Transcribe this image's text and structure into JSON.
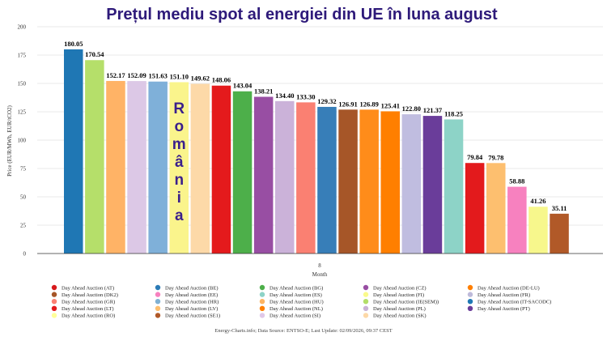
{
  "chart_data": {
    "type": "bar",
    "title": "Prețul mediu spot al energiei din UE în luna august",
    "xlabel": "Month",
    "ylabel": "Price (EUR/MWh, EUR/tCO2)",
    "ylim": [
      0,
      200
    ],
    "yticks": [
      0,
      25,
      50,
      75,
      100,
      125,
      150,
      175,
      200
    ],
    "categories": [
      "8"
    ],
    "grid": true,
    "legend_position": "bottom",
    "annotation": {
      "text": "România",
      "letters": [
        "R",
        "o",
        "m",
        "â",
        "n",
        "i",
        "a"
      ]
    },
    "series": [
      {
        "name": "Day Ahead Auction (AT)",
        "value": 180.05,
        "label": "180.05",
        "color": "#1f77b4"
      },
      {
        "name": "Day Ahead Auction (IE(SEM))",
        "value": 170.54,
        "label": "170.54",
        "color": "#b5df6a"
      },
      {
        "name": "Day Ahead Auction (LV)",
        "value": 152.17,
        "label": "152.17",
        "color": "#ffb366"
      },
      {
        "name": "Day Ahead Auction (SI)",
        "value": 152.09,
        "label": "152.09",
        "color": "#dcc8e6"
      },
      {
        "name": "Day Ahead Auction (HR)",
        "value": 151.63,
        "label": "151.63",
        "color": "#7fb0d9"
      },
      {
        "name": "Day Ahead Auction (RO)",
        "value": 151.1,
        "label": "151.10",
        "color": "#faf48c"
      },
      {
        "name": "Day Ahead Auction (SK)",
        "value": 149.62,
        "label": "149.62",
        "color": "#fdd9a8"
      },
      {
        "name": "Day Ahead Auction (LT)",
        "value": 148.06,
        "label": "148.06",
        "color": "#e41a1c"
      },
      {
        "name": "Day Ahead Auction (BG)",
        "value": 143.04,
        "label": "143.04",
        "color": "#4daf4a"
      },
      {
        "name": "Day Ahead Auction (CZ)",
        "value": 138.21,
        "label": "138.21",
        "color": "#984ea3"
      },
      {
        "name": "Day Ahead Auction (PL)",
        "value": 134.4,
        "label": "134.40",
        "color": "#cbb2d9"
      },
      {
        "name": "Day Ahead Auction (GR)",
        "value": 133.3,
        "label": "133.30",
        "color": "#fa8072"
      },
      {
        "name": "Day Ahead Auction (IT-SACODC)",
        "value": 129.32,
        "label": "129.32",
        "color": "#377eb8"
      },
      {
        "name": "Day Ahead Auction (SE1)",
        "value": 126.91,
        "label": "126.91",
        "color": "#a65628"
      },
      {
        "name": "Day Ahead Auction (DE-LU)",
        "value": 126.89,
        "label": "126.89",
        "color": "#ff8c1a"
      },
      {
        "name": "Day Ahead Auction (NL)",
        "value": 125.41,
        "label": "125.41",
        "color": "#ff7f00"
      },
      {
        "name": "Day Ahead Auction (FR)",
        "value": 122.8,
        "label": "122.80",
        "color": "#c0bde0"
      },
      {
        "name": "Day Ahead Auction (PT)",
        "value": 121.37,
        "label": "121.37",
        "color": "#6a3d9a"
      },
      {
        "name": "Day Ahead Auction (ES)",
        "value": 118.25,
        "label": "118.25",
        "color": "#8dd3c7"
      },
      {
        "name": "Day Ahead Auction (DK2)",
        "value": 79.84,
        "label": "79.84",
        "color": "#e31a1c"
      },
      {
        "name": "Day Ahead Auction (FI)",
        "value": 79.78,
        "label": "79.78",
        "color": "#fdbf6f"
      },
      {
        "name": "Day Ahead Auction (HU)",
        "value": 58.88,
        "label": "58.88",
        "color": "#f781bf"
      },
      {
        "name": "Day Ahead Auction (EE)",
        "value": 41.26,
        "label": "41.26",
        "color": "#f7f78c"
      },
      {
        "name": "Day Ahead Auction (BE)",
        "value": 35.11,
        "label": "35.11",
        "color": "#b15928"
      }
    ],
    "legend": [
      {
        "label": "Day Ahead Auction (AT)",
        "color": "#d7191c"
      },
      {
        "label": "Day Ahead Auction (BE)",
        "color": "#2c7bb6"
      },
      {
        "label": "Day Ahead Auction (BG)",
        "color": "#4daf4a"
      },
      {
        "label": "Day Ahead Auction (CZ)",
        "color": "#984ea3"
      },
      {
        "label": "Day Ahead Auction (DE-LU)",
        "color": "#ff7f00"
      },
      {
        "label": "Day Ahead Auction (DK2)",
        "color": "#a65628"
      },
      {
        "label": "Day Ahead Auction (EE)",
        "color": "#f781bf"
      },
      {
        "label": "Day Ahead Auction (ES)",
        "color": "#8dd3c7"
      },
      {
        "label": "Day Ahead Auction (FI)",
        "color": "#fafa8c"
      },
      {
        "label": "Day Ahead Auction (FR)",
        "color": "#bebada"
      },
      {
        "label": "Day Ahead Auction (GR)",
        "color": "#fb8072"
      },
      {
        "label": "Day Ahead Auction (HR)",
        "color": "#80b1d3"
      },
      {
        "label": "Day Ahead Auction (HU)",
        "color": "#fdb462"
      },
      {
        "label": "Day Ahead Auction (IE(SEM))",
        "color": "#b3de69"
      },
      {
        "label": "Day Ahead Auction (IT-SACODC)",
        "color": "#1f78b4"
      },
      {
        "label": "Day Ahead Auction (LT)",
        "color": "#e31a1c"
      },
      {
        "label": "Day Ahead Auction (LV)",
        "color": "#fdbf6f"
      },
      {
        "label": "Day Ahead Auction (NL)",
        "color": "#ff7f00"
      },
      {
        "label": "Day Ahead Auction (PL)",
        "color": "#cab2d6"
      },
      {
        "label": "Day Ahead Auction (PT)",
        "color": "#6a3d9a"
      },
      {
        "label": "Day Ahead Auction (RO)",
        "color": "#ffff99"
      },
      {
        "label": "Day Ahead Auction (SE1)",
        "color": "#b15928"
      },
      {
        "label": "Day Ahead Auction (SI)",
        "color": "#e0c8e8"
      },
      {
        "label": "Day Ahead Auction (SK)",
        "color": "#fdd9a8"
      }
    ],
    "footer": "Energy-Charts.info; Data Source: ENTSO-E; Last Update: 02/09/2026, 09:37 CEST"
  }
}
